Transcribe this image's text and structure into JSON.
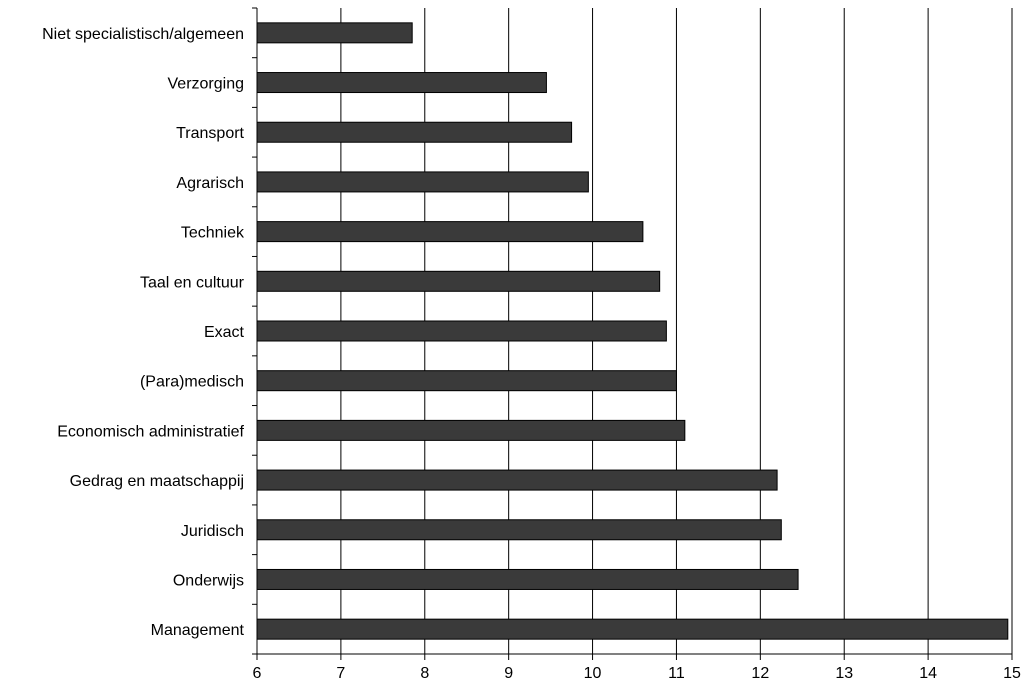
{
  "colors": {
    "bar": "#3a3a3a",
    "bar_stroke": "#000000",
    "grid": "#000000",
    "axis": "#000000",
    "text": "#000000",
    "background": "#ffffff"
  },
  "chart_data": {
    "type": "bar",
    "orientation": "horizontal",
    "title": "",
    "xlabel": "",
    "ylabel": "",
    "xlim": [
      6,
      15
    ],
    "x_ticks": [
      6,
      7,
      8,
      9,
      10,
      11,
      12,
      13,
      14,
      15
    ],
    "grid": "vertical",
    "legend": "none",
    "categories": [
      "Niet specialistisch/algemeen",
      "Verzorging",
      "Transport",
      "Agrarisch",
      "Techniek",
      "Taal en cultuur",
      "Exact",
      "(Para)medisch",
      "Economisch administratief",
      "Gedrag en maatschappij",
      "Juridisch",
      "Onderwijs",
      "Management"
    ],
    "values": [
      7.85,
      9.45,
      9.75,
      9.95,
      10.6,
      10.8,
      10.88,
      11.0,
      11.1,
      12.2,
      12.25,
      12.45,
      14.95
    ]
  }
}
